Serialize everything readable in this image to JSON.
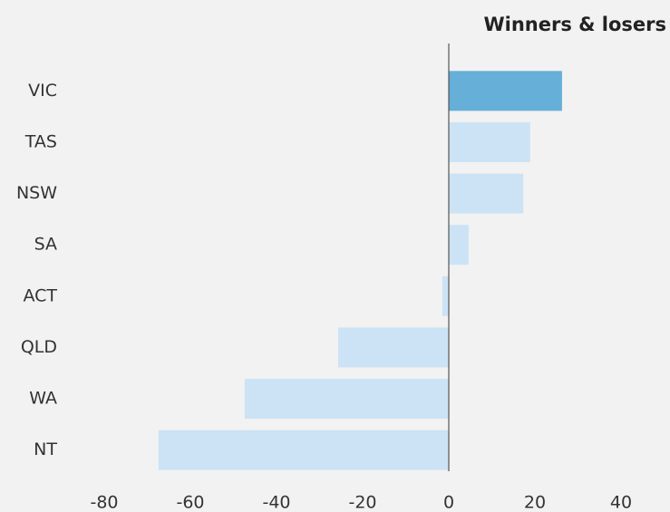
{
  "chart_data": {
    "type": "hbar",
    "title": "Winners & losers",
    "categories": [
      "VIC",
      "TAS",
      "NSW",
      "SA",
      "ACT",
      "QLD",
      "WA",
      "NT"
    ],
    "values": [
      26.3,
      18.9,
      17.3,
      4.6,
      -1.5,
      -25.7,
      -47.4,
      -67.4
    ],
    "colors": [
      "#66afd8",
      "#cce3f5",
      "#cce3f5",
      "#cce3f5",
      "#cce3f5",
      "#cce3f5",
      "#cce3f5",
      "#cce3f5"
    ],
    "xlim": [
      -80,
      40
    ],
    "xticks": [
      -80,
      -60,
      -40,
      -20,
      0,
      20,
      40
    ],
    "grid": false
  }
}
